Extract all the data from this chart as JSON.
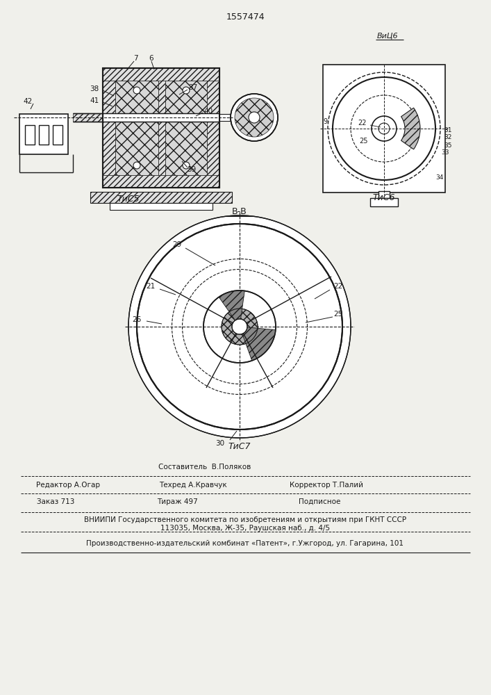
{
  "patent_number": "1557474",
  "background_color": "#f0f0eb",
  "line_color": "#1a1a1a",
  "fig5_caption": "ΤиС5",
  "fig6_caption": "ΤиС6",
  "fig7_caption": "ΤиС7",
  "view_label": "ВиЦ6",
  "section_label": "В-В",
  "footer_sestavitel": "Составитель  В.Поляков",
  "footer_redaktor": "Редактор А.Огар",
  "footer_tehred": "Техред А.Кравчук",
  "footer_korrektor": "Корректор Т.Палий",
  "footer_zakaz": "Заказ 713",
  "footer_tirazh": "Тираж 497",
  "footer_podpisnoe": "Подписное",
  "footer_vniip": "ВНИИПИ Государственного комитета по изобретениям и открытиям при ГКНТ СССР",
  "footer_addr": "113035, Москва, Ж-35, Раушская наб., д. 4/5",
  "footer_kombinat": "Производственно-издательский комбинат «Патент», г.Ужгород, ул. Гагарина, 101"
}
